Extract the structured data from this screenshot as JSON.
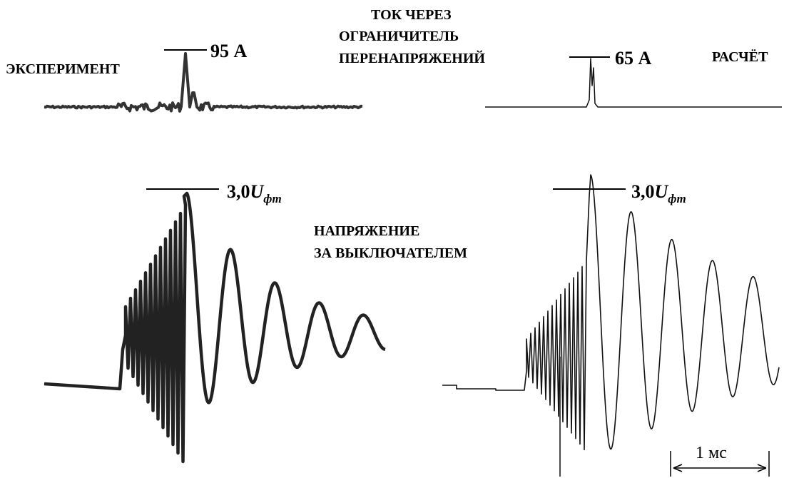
{
  "title": {
    "lines": [
      "ТОК ЧЕРЕЗ",
      "ОГРАНИЧИТЕЛЬ",
      "ПЕРЕНАПРЯЖЕНИЙ"
    ]
  },
  "panels": [
    {
      "label": "ЭКСПЕРИМЕНТ",
      "current_peak": "95 А",
      "voltage_peak": {
        "value": "3,0",
        "symbol": "U",
        "subscript": "фm"
      }
    },
    {
      "label": "РАСЧЁТ",
      "current_peak": "65 А",
      "voltage_peak": {
        "value": "3,0",
        "symbol": "U",
        "subscript": "фm"
      }
    }
  ],
  "voltage_label": {
    "lines": [
      "НАПРЯЖЕНИЕ",
      "ЗА ВЫКЛЮЧАТЕЛЕМ"
    ]
  },
  "scale_bar": "1 мс"
}
